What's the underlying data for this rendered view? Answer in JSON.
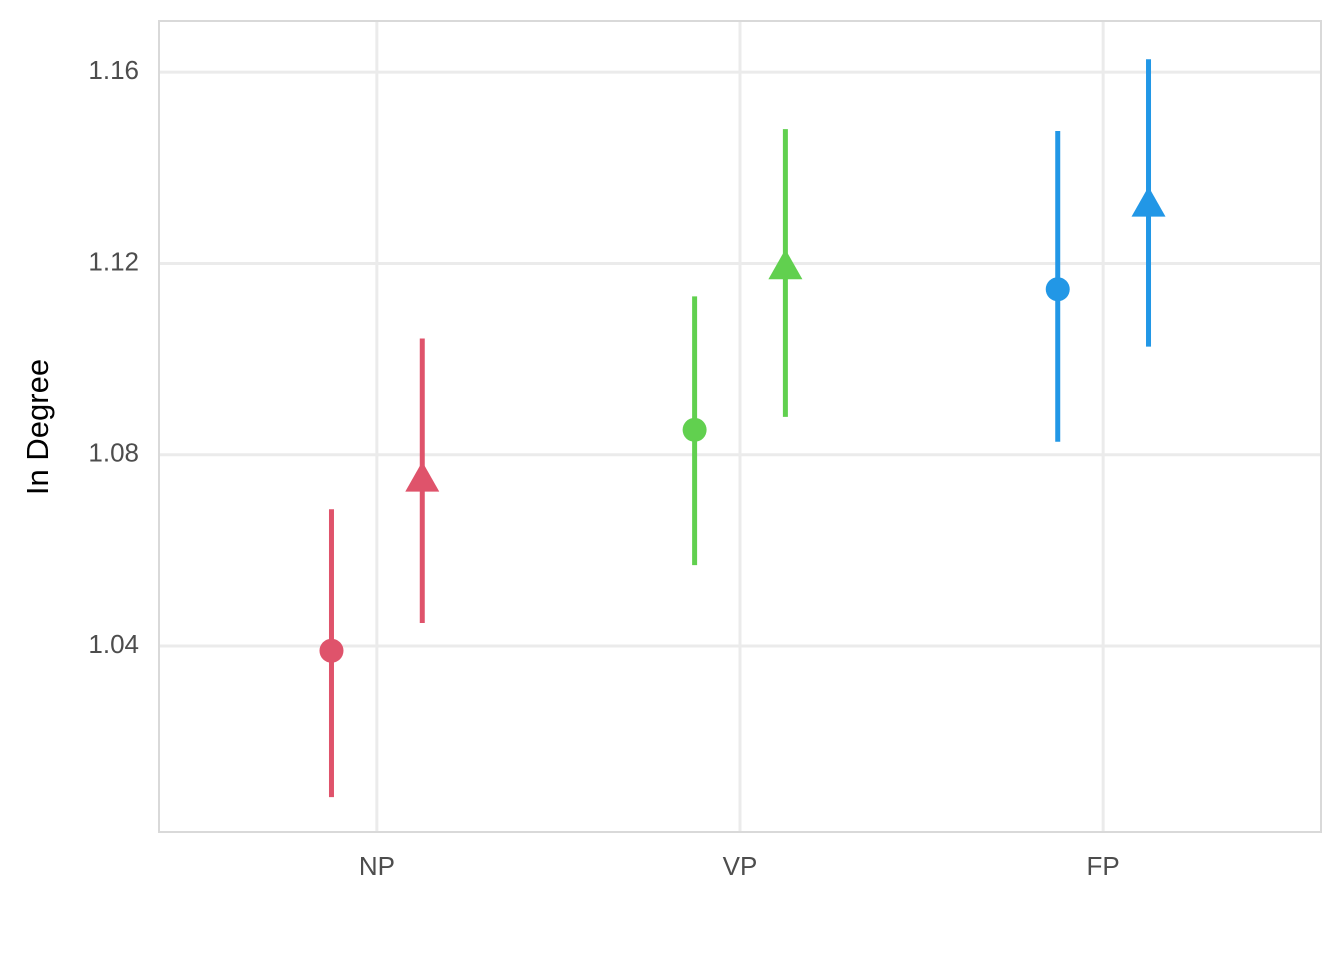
{
  "chart_data": {
    "type": "pointrange",
    "y_label": "In Degree",
    "categories": [
      "NP",
      "VP",
      "FP"
    ],
    "colors": [
      "#df536b",
      "#61d04f",
      "#2297e6"
    ],
    "series": [
      {
        "shape": "circle",
        "values": [
          1.039,
          1.0852,
          1.1146
        ],
        "lower": [
          1.0084,
          1.0569,
          1.0827
        ],
        "upper": [
          1.0686,
          1.1131,
          1.1477
        ]
      },
      {
        "shape": "triangle",
        "values": [
          1.0748,
          1.1192,
          1.1323
        ],
        "lower": [
          1.0448,
          1.0879,
          1.1026
        ],
        "upper": [
          1.1043,
          1.1481,
          1.1627
        ]
      }
    ],
    "ylim": [
      1.0011,
      1.1707
    ],
    "yticks": [
      1.04,
      1.08,
      1.12,
      1.16
    ],
    "grid": true
  }
}
